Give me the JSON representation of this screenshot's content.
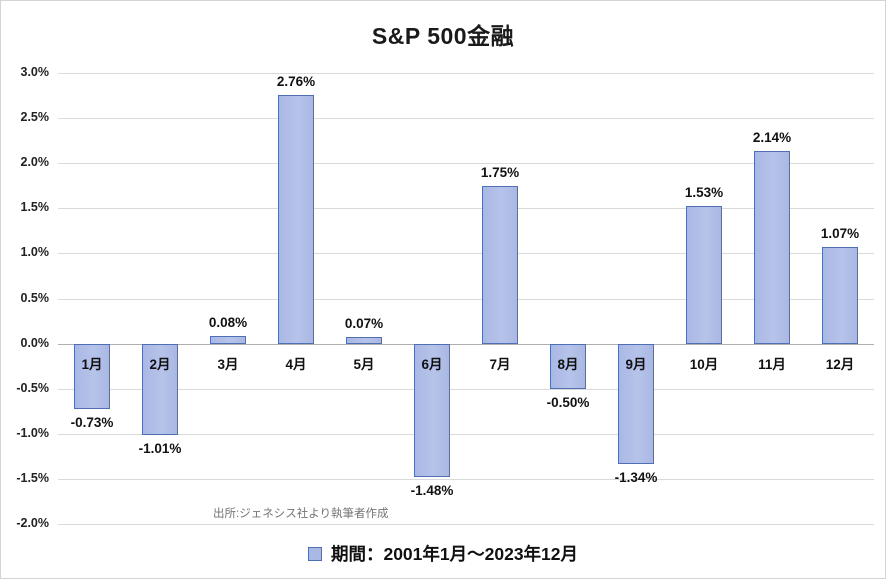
{
  "chart_data": {
    "type": "bar",
    "title": "S&P 500金融",
    "categories": [
      "1月",
      "2月",
      "3月",
      "4月",
      "5月",
      "6月",
      "7月",
      "8月",
      "9月",
      "10月",
      "11月",
      "12月"
    ],
    "values": [
      -0.73,
      -1.01,
      0.08,
      2.76,
      0.07,
      -1.48,
      1.75,
      -0.5,
      -1.34,
      1.53,
      2.14,
      1.07
    ],
    "data_labels": [
      "-0.73%",
      "-1.01%",
      "0.08%",
      "2.76%",
      "0.07%",
      "-1.48%",
      "1.75%",
      "-0.50%",
      "-1.34%",
      "1.53%",
      "2.14%",
      "1.07%"
    ],
    "xlabel": "",
    "ylabel": "",
    "ylim": [
      -2.0,
      3.0
    ],
    "ytick_step": 0.5,
    "ytick_labels": [
      "3.0%",
      "2.5%",
      "2.0%",
      "1.5%",
      "1.0%",
      "0.5%",
      "0.0%",
      "-0.5%",
      "-1.0%",
      "-1.5%",
      "-2.0%"
    ],
    "grid": true,
    "legend_position": "bottom",
    "legend_label": "期間：2001年1月～2023年12月",
    "source": "出所:ジェネシス社より執筆者作成"
  },
  "colors": {
    "bar_fill": "#a9b8e4",
    "bar_border": "#4e6fb2",
    "gridline": "#dadada",
    "zero_line": "#b0b0b0",
    "text": "#111111",
    "source_text": "#757575",
    "background": "#ffffff"
  }
}
